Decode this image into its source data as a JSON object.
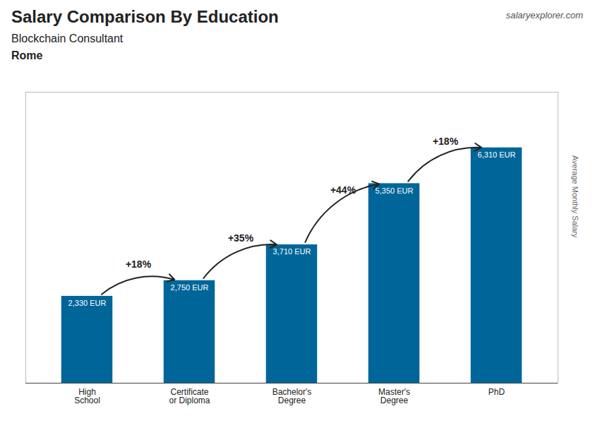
{
  "chart_data": {
    "type": "bar",
    "title": "Salary Comparison By Education",
    "subtitle": "Blockchain Consultant",
    "ylabel": "Average Monthly Salary",
    "categories": [
      "High\nSchool",
      "Certificate\nor Diploma",
      "Bachelor's\nDegree",
      "Master's\nDegree",
      "PhD"
    ],
    "values": [
      2330,
      2750,
      3710,
      5350,
      6310
    ],
    "value_labels": [
      "2,330 EUR",
      "2,750 EUR",
      "3,710 EUR",
      "5,350 EUR",
      "6,310 EUR"
    ],
    "data_labels": true,
    "color": "#006699",
    "ylim": [
      0,
      7800
    ],
    "tick_labels": "x",
    "grid": false,
    "annotations": [
      {
        "text": "+18%",
        "from": "High\nSchool",
        "to": "Certificate\nor Diploma"
      },
      {
        "text": "+35%",
        "from": "Certificate\nor Diploma",
        "to": "Bachelor's\nDegree"
      },
      {
        "text": "+44%",
        "from": "Bachelor's\nDegree",
        "to": "Master's\nDegree"
      },
      {
        "text": "+18%",
        "from": "Master's\nDegree",
        "to": "PhD"
      },
      {
        "text": "Rome"
      },
      {
        "text": "salaryexplorer.com"
      }
    ]
  }
}
